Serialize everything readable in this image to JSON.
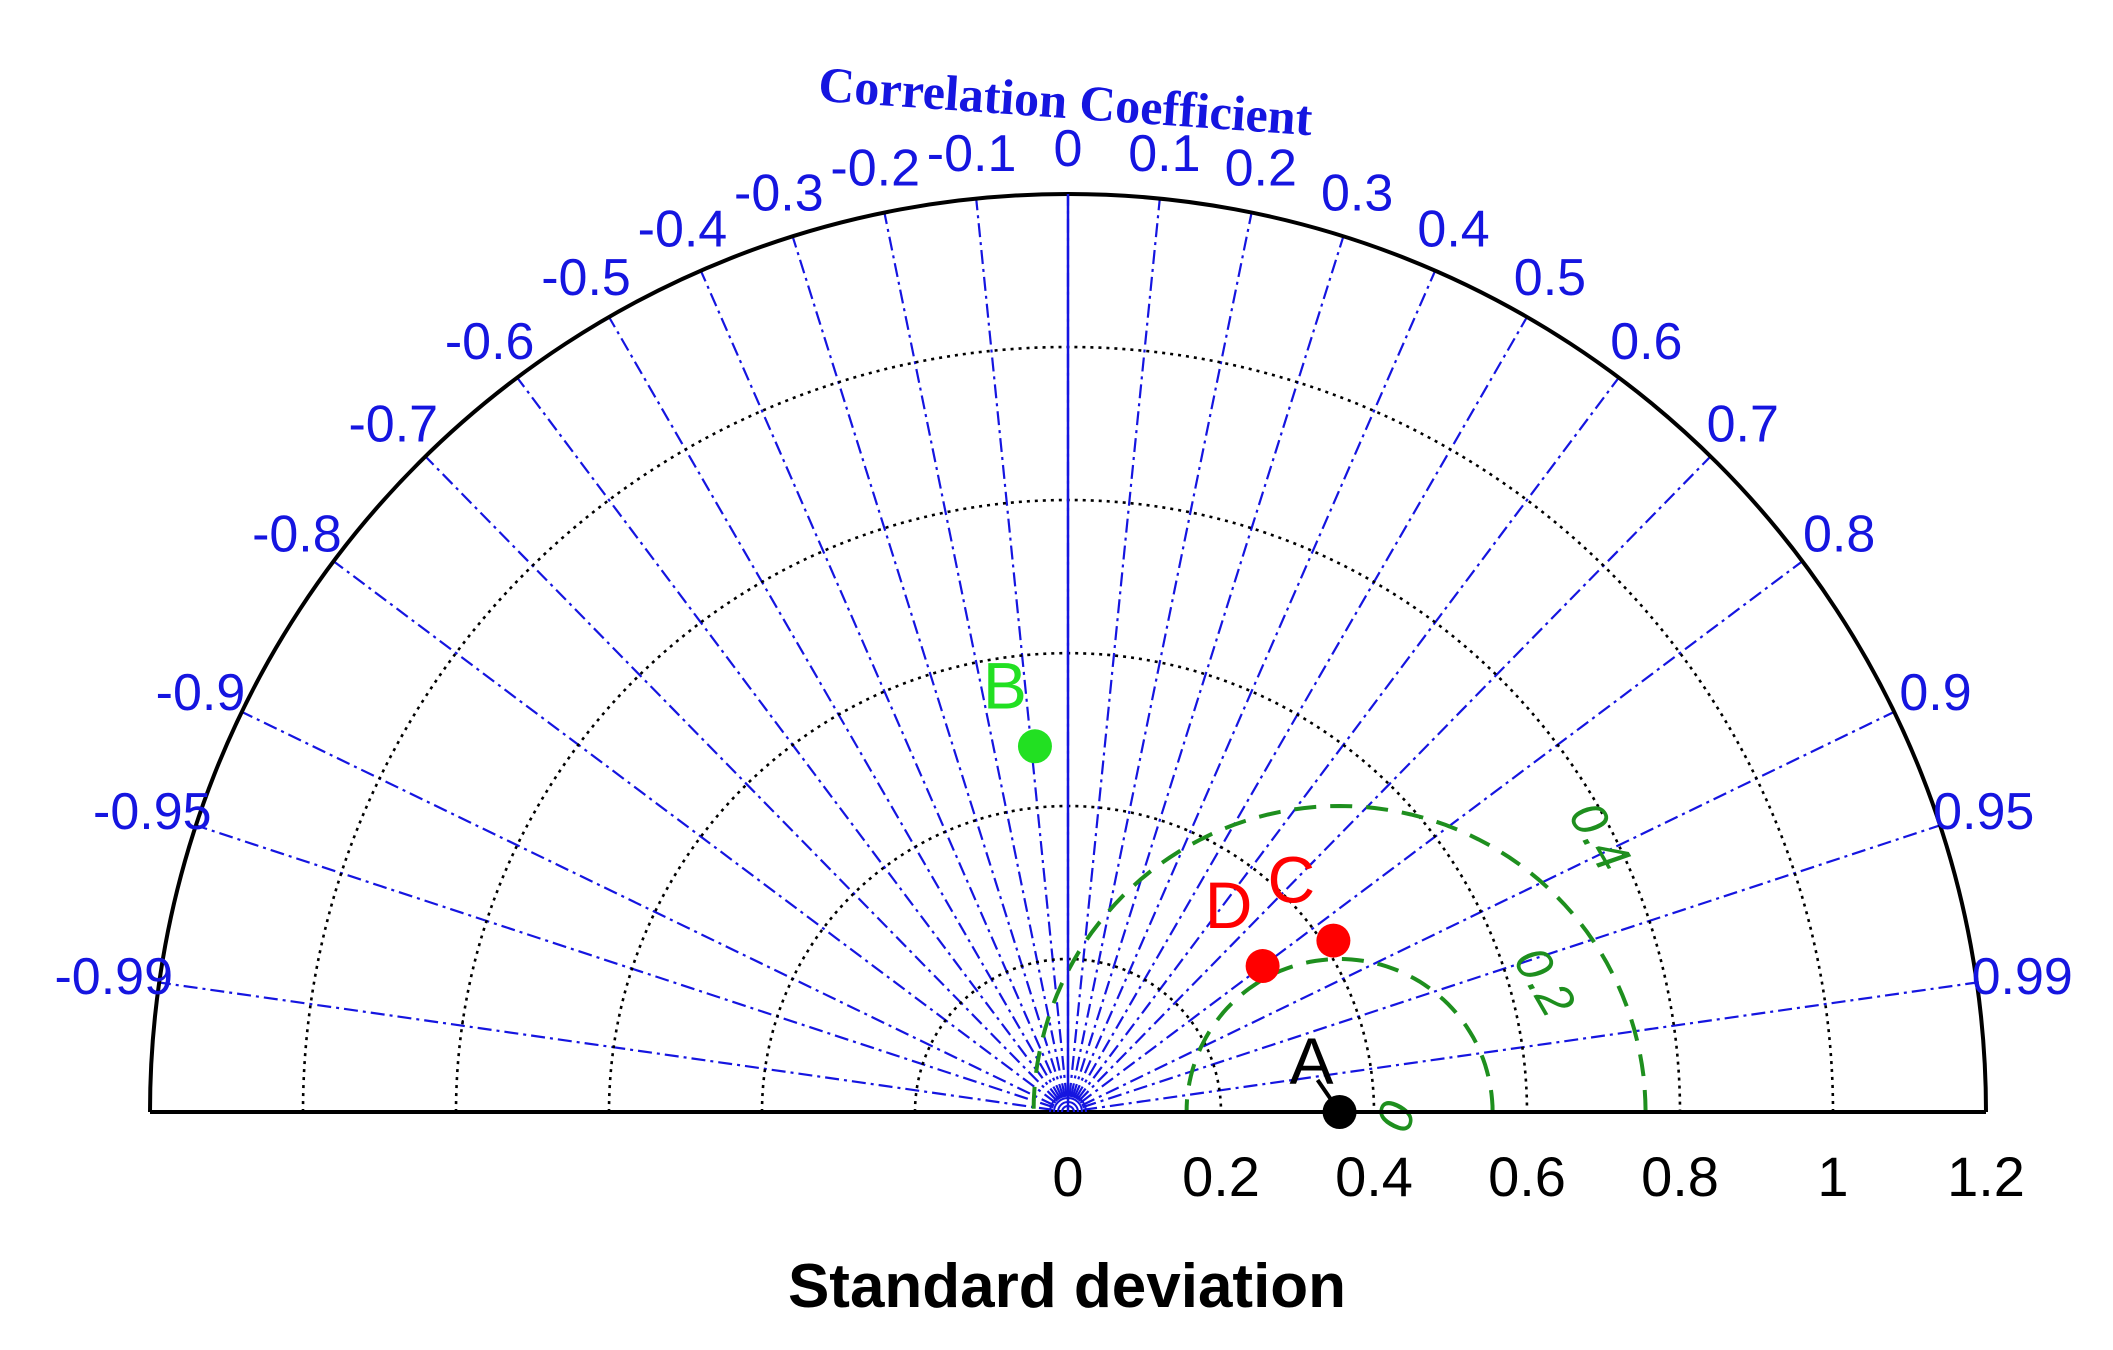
{
  "chart_data": {
    "type": "scatter",
    "subtype": "taylor-diagram",
    "title": "",
    "corr_label": "Correlation Coefficient",
    "xlabel": "Standard deviation",
    "std_range": [
      0,
      1.2
    ],
    "std_ticks": [
      "0",
      "0.2",
      "0.4",
      "0.6",
      "0.8",
      "1",
      "1.2"
    ],
    "std_tick_values": [
      0,
      0.2,
      0.4,
      0.6,
      0.8,
      1.0,
      1.2
    ],
    "std_circles": [
      0.2,
      0.4,
      0.6,
      0.8,
      1.0
    ],
    "corr_ticks": [
      {
        "value": -0.99,
        "label": "-0.99"
      },
      {
        "value": -0.95,
        "label": "-0.95"
      },
      {
        "value": -0.9,
        "label": "-0.9"
      },
      {
        "value": -0.8,
        "label": "-0.8"
      },
      {
        "value": -0.7,
        "label": "-0.7"
      },
      {
        "value": -0.6,
        "label": "-0.6"
      },
      {
        "value": -0.5,
        "label": "-0.5"
      },
      {
        "value": -0.4,
        "label": "-0.4"
      },
      {
        "value": -0.3,
        "label": "-0.3"
      },
      {
        "value": -0.2,
        "label": "-0.2"
      },
      {
        "value": -0.1,
        "label": "-0.1"
      },
      {
        "value": 0,
        "label": "0"
      },
      {
        "value": 0.1,
        "label": "0.1"
      },
      {
        "value": 0.2,
        "label": "0.2"
      },
      {
        "value": 0.3,
        "label": "0.3"
      },
      {
        "value": 0.4,
        "label": "0.4"
      },
      {
        "value": 0.5,
        "label": "0.5"
      },
      {
        "value": 0.6,
        "label": "0.6"
      },
      {
        "value": 0.7,
        "label": "0.7"
      },
      {
        "value": 0.8,
        "label": "0.8"
      },
      {
        "value": 0.9,
        "label": "0.9"
      },
      {
        "value": 0.95,
        "label": "0.95"
      },
      {
        "value": 0.99,
        "label": "0.99"
      }
    ],
    "rms_ref_std": 0.355,
    "rms_contours": [
      {
        "value": 0,
        "label": "0"
      },
      {
        "value": 0.2,
        "label": "0.2"
      },
      {
        "value": 0.4,
        "label": "0.4"
      }
    ],
    "points": [
      {
        "label": "A",
        "std": 0.355,
        "corr": 1.0,
        "color": "#000000"
      },
      {
        "label": "B",
        "std": 0.48,
        "corr": -0.09,
        "color": "#22e022"
      },
      {
        "label": "C",
        "std": 0.413,
        "corr": 0.84,
        "color": "#ff0000"
      },
      {
        "label": "D",
        "std": 0.318,
        "corr": 0.8,
        "color": "#ff0000"
      }
    ],
    "colors": {
      "frame": "#000000",
      "corr": "#1515e0",
      "std_grid": "#000000",
      "rms": "#1e8f1e"
    }
  }
}
